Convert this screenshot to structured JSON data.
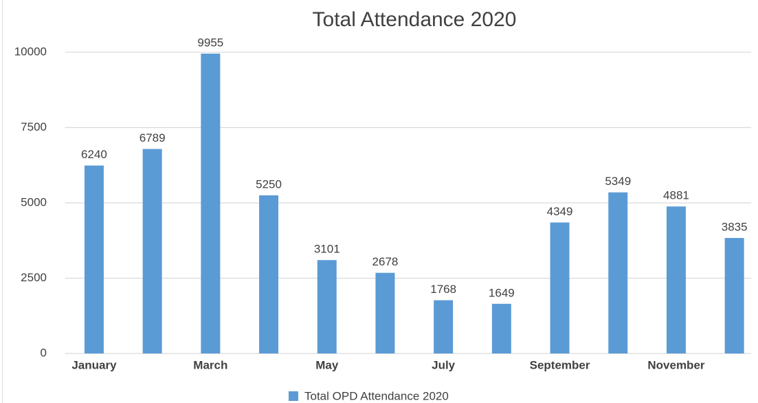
{
  "chart_data": {
    "type": "bar",
    "title": "Total  Attendance 2020",
    "categories": [
      "January",
      null,
      "March",
      null,
      "May",
      null,
      "July",
      null,
      "September",
      null,
      "November",
      null
    ],
    "series": [
      {
        "name": "Total OPD Attendance 2020",
        "color": "#5b9bd5",
        "values": [
          6240,
          6789,
          9955,
          5250,
          3101,
          2678,
          1768,
          1649,
          4349,
          5349,
          4881,
          3835
        ]
      }
    ],
    "ylim": [
      0,
      10000
    ],
    "yticks": [
      0,
      2500,
      5000,
      7500,
      10000
    ],
    "grid": true,
    "legend": "bottom"
  }
}
